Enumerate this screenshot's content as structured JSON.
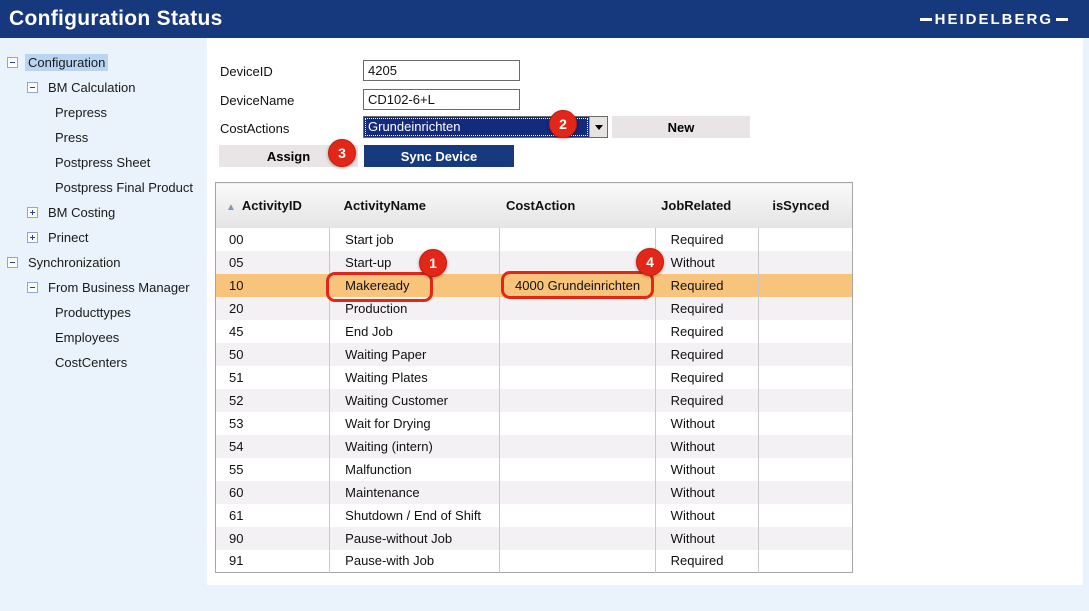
{
  "header": {
    "title": "Configuration Status",
    "logo_text": "HEIDELBERG"
  },
  "sidebar": {
    "items": [
      {
        "label": "Configuration",
        "level": 0,
        "toggle": "collapse",
        "selected": true
      },
      {
        "label": "BM Calculation",
        "level": 1,
        "toggle": "collapse",
        "selected": false
      },
      {
        "label": "Prepress",
        "level": 2,
        "toggle": "none",
        "selected": false
      },
      {
        "label": "Press",
        "level": 2,
        "toggle": "none",
        "selected": false
      },
      {
        "label": "Postpress Sheet",
        "level": 2,
        "toggle": "none",
        "selected": false
      },
      {
        "label": "Postpress Final Product",
        "level": 2,
        "toggle": "none",
        "selected": false
      },
      {
        "label": "BM Costing",
        "level": 1,
        "toggle": "expand",
        "selected": false
      },
      {
        "label": "Prinect",
        "level": 1,
        "toggle": "expand",
        "selected": false
      },
      {
        "label": "Synchronization",
        "level": 0,
        "toggle": "collapse",
        "selected": false
      },
      {
        "label": "From Business Manager",
        "level": 1,
        "toggle": "collapse",
        "selected": false
      },
      {
        "label": "Producttypes",
        "level": 2,
        "toggle": "none",
        "selected": false
      },
      {
        "label": "Employees",
        "level": 2,
        "toggle": "none",
        "selected": false
      },
      {
        "label": "CostCenters",
        "level": 2,
        "toggle": "none",
        "selected": false
      }
    ]
  },
  "form": {
    "device_id": {
      "label": "DeviceID",
      "value": "4205"
    },
    "device_name": {
      "label": "DeviceName",
      "value": "CD102-6+L"
    },
    "cost_actions": {
      "label": "CostActions",
      "selected": "Grundeinrichten"
    },
    "buttons": {
      "new_label": "New",
      "assign_label": "Assign",
      "sync_label": "Sync Device"
    }
  },
  "table": {
    "sort_indicator": "▲",
    "columns": [
      "ActivityID",
      "ActivityName",
      "CostAction",
      "JobRelated",
      "isSynced"
    ],
    "rows": [
      {
        "id": "00",
        "name": "Start job",
        "cost": "",
        "job": "Required",
        "sync": ""
      },
      {
        "id": "05",
        "name": "Start-up",
        "cost": "",
        "job": "Without",
        "sync": ""
      },
      {
        "id": "10",
        "name": "Makeready",
        "cost": "4000 Grundeinrichten",
        "job": "Required",
        "sync": ""
      },
      {
        "id": "20",
        "name": "Production",
        "cost": "",
        "job": "Required",
        "sync": ""
      },
      {
        "id": "45",
        "name": "End Job",
        "cost": "",
        "job": "Required",
        "sync": ""
      },
      {
        "id": "50",
        "name": "Waiting Paper",
        "cost": "",
        "job": "Required",
        "sync": ""
      },
      {
        "id": "51",
        "name": "Waiting Plates",
        "cost": "",
        "job": "Required",
        "sync": ""
      },
      {
        "id": "52",
        "name": "Waiting Customer",
        "cost": "",
        "job": "Required",
        "sync": ""
      },
      {
        "id": "53",
        "name": "Wait for Drying",
        "cost": "",
        "job": "Without",
        "sync": ""
      },
      {
        "id": "54",
        "name": "Waiting (intern)",
        "cost": "",
        "job": "Without",
        "sync": ""
      },
      {
        "id": "55",
        "name": "Malfunction",
        "cost": "",
        "job": "Without",
        "sync": ""
      },
      {
        "id": "60",
        "name": "Maintenance",
        "cost": "",
        "job": "Without",
        "sync": ""
      },
      {
        "id": "61",
        "name": "Shutdown / End of Shift",
        "cost": "",
        "job": "Without",
        "sync": ""
      },
      {
        "id": "90",
        "name": "Pause-without Job",
        "cost": "",
        "job": "Without",
        "sync": ""
      },
      {
        "id": "91",
        "name": "Pause-with Job",
        "cost": "",
        "job": "Required",
        "sync": ""
      }
    ]
  },
  "annotations": {
    "callouts": [
      {
        "label": "1"
      },
      {
        "label": "2"
      },
      {
        "label": "3"
      },
      {
        "label": "4"
      }
    ]
  },
  "colors": {
    "topbar_navy": "#16387c",
    "select_navy": "#132a7d",
    "selected_row_orange": "#f8c47c",
    "annotation_red": "#e22718",
    "tree_selection_blue": "#b9d5f1",
    "page_background": "#eaf2fb"
  }
}
